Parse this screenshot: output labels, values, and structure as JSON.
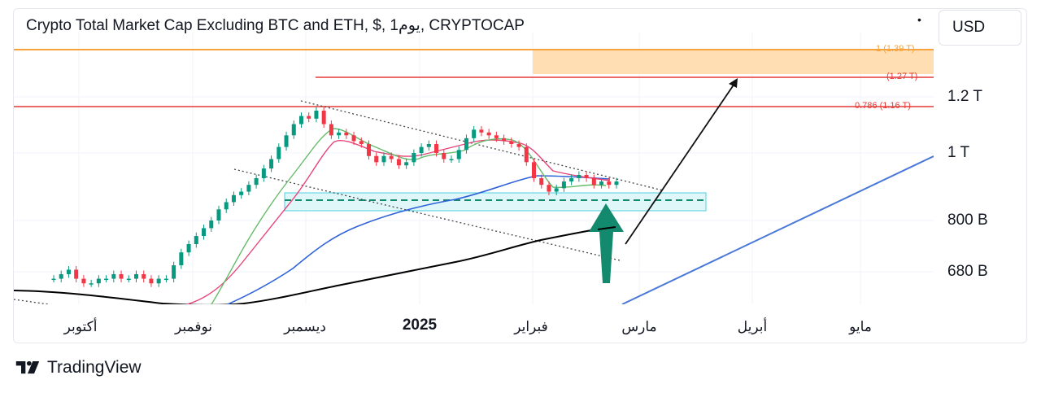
{
  "header": {
    "title": "Crypto Total Market Cap Excluding BTC and ETH, $, 1يوم, CRYPTOCAP",
    "currency_button": "USD"
  },
  "brand": {
    "name": "TradingView"
  },
  "colors": {
    "candle_up": "#089981",
    "candle_down": "#f23645",
    "ema_short": "#4caf50",
    "ema_mid": "#e91e63",
    "ma_blue": "#2962ff",
    "ma_black": "#000000",
    "fib_orange": "#f7a23a",
    "fib_red": "#e53935",
    "channel": "#333333",
    "arrow_green": "#138a6e",
    "zone_cyan": "#26c6da"
  },
  "chart_data": {
    "type": "candlestick",
    "title": "Crypto Total Market Cap Excluding BTC and ETH, $, 1يوم, CRYPTOCAP",
    "xlabel": "",
    "ylabel": "",
    "x_tick_labels": [
      "أكتوبر",
      "نوفمبر",
      "ديسمبر",
      "2025",
      "فبراير",
      "مارس",
      "أبريل",
      "مايو"
    ],
    "y_tick_labels": [
      "1.2 T",
      "1 T",
      "800 B",
      "680 B"
    ],
    "y_scale": "log",
    "levels": [
      {
        "label": "1 (1.39 T)",
        "value": 1.39,
        "color": "#f7a23a"
      },
      {
        "label": "(1.27 T)",
        "value": 1.27,
        "color": "#e53935"
      },
      {
        "label": "0.786 (1.16 T)",
        "value": 1.16,
        "color": "#e53935"
      }
    ],
    "close_series_T": [
      0.66,
      0.67,
      0.68,
      0.66,
      0.65,
      0.65,
      0.66,
      0.66,
      0.67,
      0.66,
      0.66,
      0.67,
      0.66,
      0.65,
      0.66,
      0.66,
      0.69,
      0.72,
      0.74,
      0.76,
      0.78,
      0.8,
      0.83,
      0.85,
      0.87,
      0.88,
      0.9,
      0.92,
      0.95,
      0.98,
      1.02,
      1.06,
      1.1,
      1.13,
      1.12,
      1.15,
      1.1,
      1.06,
      1.07,
      1.06,
      1.04,
      1.03,
      0.99,
      0.97,
      0.99,
      0.98,
      0.96,
      0.97,
      1.0,
      1.02,
      1.03,
      1.0,
      0.98,
      0.98,
      1.01,
      1.05,
      1.08,
      1.07,
      1.06,
      1.05,
      1.04,
      1.03,
      1.02,
      0.97,
      0.92,
      0.9,
      0.88,
      0.89,
      0.91,
      0.92,
      0.93,
      0.92,
      0.9,
      0.91,
      0.9,
      0.91
    ]
  }
}
